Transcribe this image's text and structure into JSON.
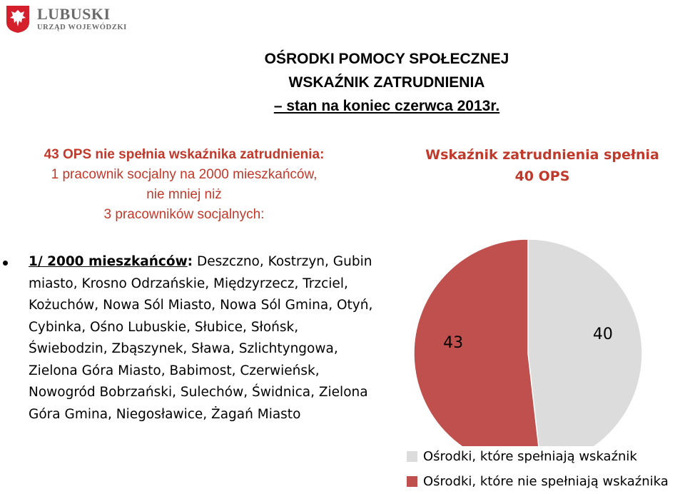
{
  "logo": {
    "name": "LUBUSKI",
    "subtitle": "URZĄD WOJEWÓDZKI",
    "emblem": "polish-eagle-emblem"
  },
  "title": {
    "line1": "OŚRODKI POMOCY SPOŁECZNEJ",
    "line2": "WSKAŹNIK ZATRUDNIENIA",
    "line3": "– stan na koniec czerwca 2013r."
  },
  "left_header": {
    "count": "43",
    "line1_rest": " OPS nie spełnia wskaźnika zatrudnienia:",
    "line2": "1 pracownik socjalny na 2000 mieszkańców,",
    "line3": "nie mniej niż",
    "line4": "3 pracowników socjalnych:"
  },
  "list": {
    "lead": "1/ 2000 mieszkańców",
    "colon": ":",
    "text": " Deszczno, Kostrzyn, Gubin miasto, Krosno Odrzańskie, Międzyrzecz, Trzciel, Kożuchów, Nowa Sól Miasto, Nowa Sól Gmina, Otyń, Cybinka, Ośno Lubuskie, Słubice, Słońsk, Świebodzin, Zbąszynek, Sława, Szlichtyngowa, Zielona Góra Miasto, Babimost, Czerwieńsk, Nowogród Bobrzański, Sulechów, Świdnica, Zielona Góra Gmina, Niegosławice, Żagań Miasto"
  },
  "right_header": {
    "line1": "Wskaźnik zatrudnienia spełnia",
    "line2": "40 OPS"
  },
  "colors": {
    "accent_red": "#c0392b",
    "meets": "#dcdcdc",
    "not_meets": "#c0504d"
  },
  "chart_data": {
    "type": "pie",
    "series": [
      {
        "name": "Ośrodki, które spełniają wskaźnik",
        "value": 40,
        "label": "40",
        "color": "#dcdcdc"
      },
      {
        "name": "Ośrodki, które nie spełniają wskaźnika",
        "value": 43,
        "label": "43",
        "color": "#c0504d"
      }
    ],
    "start_angle_deg": 0,
    "direction": "clockwise",
    "legend_position": "bottom"
  }
}
